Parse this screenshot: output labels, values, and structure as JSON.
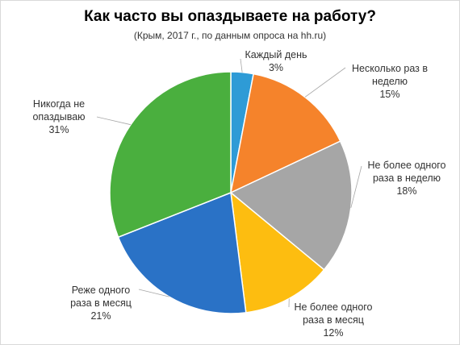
{
  "chart_data": {
    "type": "pie",
    "title": "Как часто вы опаздываете на работу?",
    "subtitle": "(Крым, 2017 г.,  по данным опроса на hh.ru)",
    "start_angle_deg": 0,
    "direction": "clockwise",
    "legend": "none",
    "slices": [
      {
        "label_lines": [
          "Каждый день"
        ],
        "value": 3,
        "value_label": "3%",
        "color": "#2e9bd6"
      },
      {
        "label_lines": [
          "Несколько раз в",
          "неделю"
        ],
        "value": 15,
        "value_label": "15%",
        "color": "#f5832b"
      },
      {
        "label_lines": [
          "Не более одного",
          "раза в неделю"
        ],
        "value": 18,
        "value_label": "18%",
        "color": "#a6a6a6"
      },
      {
        "label_lines": [
          "Не более одного",
          "раза в месяц"
        ],
        "value": 12,
        "value_label": "12%",
        "color": "#fdbd10"
      },
      {
        "label_lines": [
          "Реже одного",
          "раза в месяц"
        ],
        "value": 21,
        "value_label": "21%",
        "color": "#2a72c6"
      },
      {
        "label_lines": [
          "Никогда не",
          "опаздываю"
        ],
        "value": 31,
        "value_label": "31%",
        "color": "#4aaf3e"
      }
    ]
  }
}
